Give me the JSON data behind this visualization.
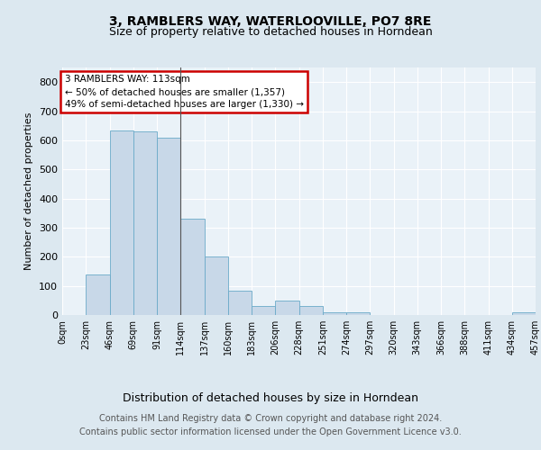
{
  "title": "3, RAMBLERS WAY, WATERLOOVILLE, PO7 8RE",
  "subtitle": "Size of property relative to detached houses in Horndean",
  "xlabel": "Distribution of detached houses by size in Horndean",
  "ylabel": "Number of detached properties",
  "bin_labels": [
    "0sqm",
    "23sqm",
    "46sqm",
    "69sqm",
    "91sqm",
    "114sqm",
    "137sqm",
    "160sqm",
    "183sqm",
    "206sqm",
    "228sqm",
    "251sqm",
    "274sqm",
    "297sqm",
    "320sqm",
    "343sqm",
    "366sqm",
    "388sqm",
    "411sqm",
    "434sqm",
    "457sqm"
  ],
  "bar_heights": [
    0,
    140,
    635,
    630,
    610,
    330,
    200,
    85,
    30,
    50,
    30,
    10,
    10,
    0,
    0,
    0,
    0,
    0,
    0,
    10
  ],
  "bar_color": "#c8d8e8",
  "bar_edge_color": "#6aaac8",
  "annotation_text": "3 RAMBLERS WAY: 113sqm\n← 50% of detached houses are smaller (1,357)\n49% of semi-detached houses are larger (1,330) →",
  "annotation_box_color": "#ffffff",
  "annotation_border_color": "#cc0000",
  "ylim": [
    0,
    850
  ],
  "yticks": [
    0,
    100,
    200,
    300,
    400,
    500,
    600,
    700,
    800
  ],
  "background_color": "#dce8f0",
  "plot_background_color": "#eaf2f8",
  "footer_text": "Contains HM Land Registry data © Crown copyright and database right 2024.\nContains public sector information licensed under the Open Government Licence v3.0.",
  "title_fontsize": 10,
  "subtitle_fontsize": 9,
  "xlabel_fontsize": 9,
  "ylabel_fontsize": 8,
  "footer_fontsize": 7,
  "tick_fontsize": 7,
  "ytick_fontsize": 8
}
